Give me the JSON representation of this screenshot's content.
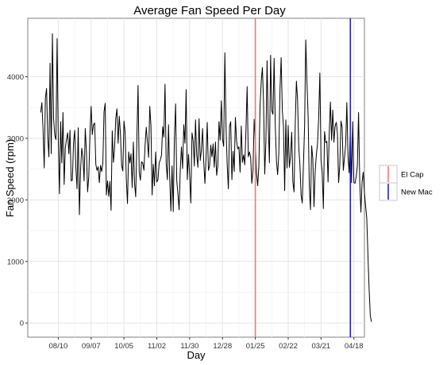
{
  "chart_data": {
    "type": "line",
    "title": "Average Fan Speed Per Day",
    "xlabel": "Day",
    "ylabel": "Fan Speed (rpm)",
    "x_ticks": [
      "08/10",
      "09/07",
      "10/05",
      "11/02",
      "11/30",
      "12/28",
      "01/25",
      "02/22",
      "03/21",
      "04/18"
    ],
    "y_ticks": [
      0,
      1000,
      2000,
      3000,
      4000
    ],
    "ylim": [
      -230,
      4950
    ],
    "xlim_days": [
      -11,
      276
    ],
    "grid": true,
    "legend": {
      "placement": "right",
      "entries": [
        {
          "label": "El Cap",
          "color": "#f8766d"
        },
        {
          "label": "New Mac",
          "color": "#2222cc"
        }
      ]
    },
    "vlines": [
      {
        "label": "El Cap",
        "date": "01/25",
        "color": "#f8766d"
      },
      {
        "label": "New Mac",
        "date": "04/15",
        "color": "#2222cc"
      }
    ],
    "series": [
      {
        "line_color": "#000000",
        "start_date": "07/26",
        "step_days": 1,
        "values": [
          3420,
          3580,
          3150,
          2520,
          3650,
          3810,
          3020,
          2700,
          4220,
          2750,
          4700,
          3320,
          3050,
          2980,
          4620,
          2980,
          2100,
          3270,
          2600,
          3420,
          2250,
          2850,
          2980,
          3090,
          2750,
          3130,
          2310,
          2320,
          2930,
          3130,
          2520,
          2180,
          3170,
          1760,
          2490,
          2840,
          2700,
          2310,
          3160,
          2780,
          2130,
          2380,
          3080,
          3520,
          3060,
          3220,
          3250,
          2580,
          2480,
          2540,
          2280,
          2560,
          2460,
          2600,
          3430,
          3570,
          2080,
          2310,
          2060,
          2300,
          1830,
          3120,
          2610,
          2840,
          3320,
          3480,
          2920,
          3360,
          3070,
          2560,
          2470,
          3280,
          3090,
          2330,
          1940,
          2780,
          2600,
          2750,
          2200,
          2940,
          2270,
          2050,
          3000,
          3860,
          2450,
          2320,
          2620,
          2600,
          2480,
          2890,
          3180,
          2940,
          2690,
          3520,
          3210,
          2080,
          2580,
          2230,
          2780,
          2290,
          2330,
          2600,
          2650,
          2730,
          3190,
          3020,
          3880,
          2590,
          2330,
          3220,
          2350,
          1820,
          2550,
          1810,
          2990,
          3560,
          2310,
          2100,
          1840,
          2490,
          2860,
          2510,
          3220,
          2920,
          3790,
          2330,
          2740,
          2400,
          1950,
          3090,
          2960,
          2550,
          3300,
          2730,
          2530,
          3320,
          2640,
          2800,
          3160,
          2620,
          2270,
          2700,
          3260,
          2480,
          2550,
          2890,
          2700,
          2910,
          2530,
          2940,
          2400,
          2560,
          3270,
          2970,
          3610,
          2990,
          2870,
          4390,
          3200,
          2570,
          2180,
          3190,
          3270,
          2330,
          2790,
          2460,
          3340,
          2950,
          2830,
          2860,
          2450,
          3200,
          2610,
          2730,
          2570,
          3130,
          3840,
          2700,
          2780,
          2690,
          2270,
          2480,
          3310,
          2940,
          2430,
          2230,
          2550,
          3520,
          3920,
          4150,
          3580,
          2420,
          2950,
          4260,
          3210,
          2600,
          4350,
          3450,
          3390,
          4300,
          3200,
          2630,
          2410,
          2740,
          3780,
          4310,
          3450,
          3190,
          2150,
          3300,
          2520,
          3210,
          2530,
          2700,
          3100,
          2290,
          2130,
          3220,
          3930,
          3630,
          2860,
          2570,
          2080,
          1950,
          2580,
          3200,
          4600,
          3920,
          3360,
          2230,
          1840,
          2880,
          2670,
          1890,
          2460,
          2730,
          2910,
          3340,
          4060,
          2650,
          2450,
          1860,
          3110,
          2930,
          2950,
          2290,
          3080,
          3590,
          2970,
          3460,
          2940,
          3200,
          3260,
          3070,
          2280,
          2570,
          3280,
          3180,
          2480,
          2680,
          2900,
          3580,
          2710,
          2440,
          3230,
          2280,
          3270,
          2280,
          2270,
          2380,
          2560,
          3420,
          2300,
          1800,
          2290,
          2450,
          2120,
          1900,
          1700,
          1100,
          550,
          120,
          20
        ]
      }
    ]
  }
}
